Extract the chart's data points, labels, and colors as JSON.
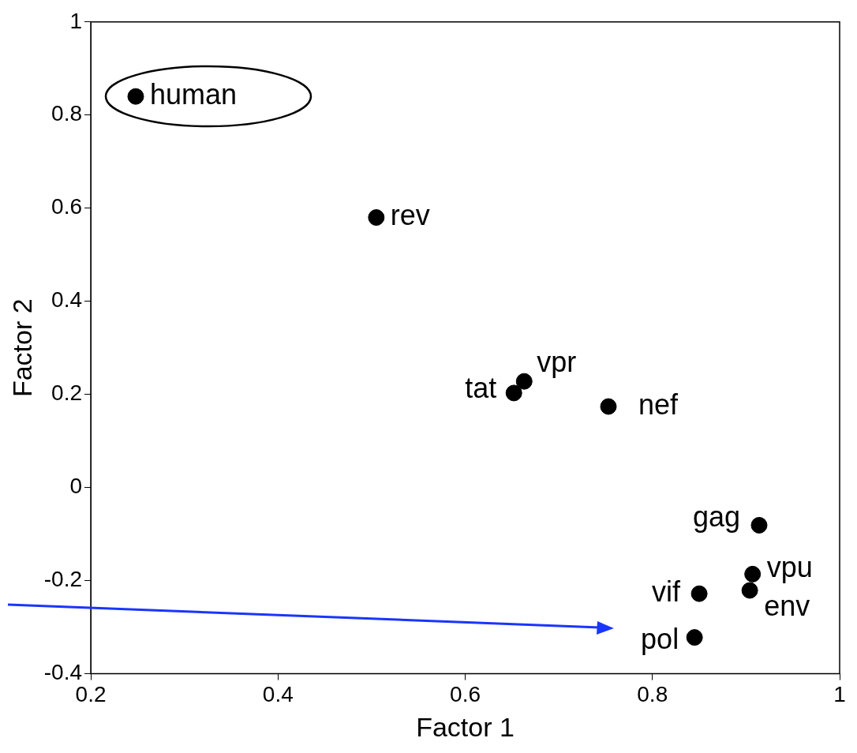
{
  "chart_data": {
    "type": "scatter",
    "xlabel": "Factor 1",
    "ylabel": "Factor 2",
    "xlim": [
      0.2,
      1
    ],
    "xticks": [
      0.2,
      0.4,
      0.6,
      0.8,
      1
    ],
    "ylim": [
      -0.4,
      1
    ],
    "yticks": [
      -0.4,
      -0.2,
      0,
      0.2,
      0.4,
      0.6,
      0.8,
      1
    ],
    "grid": false,
    "legend": false,
    "marker": "circle",
    "series": [
      {
        "color": "#000000",
        "x": [
          0.248,
          0.505,
          0.652,
          0.663,
          0.753,
          0.914,
          0.907,
          0.904,
          0.85,
          0.845
        ],
        "values": [
          0.84,
          0.58,
          0.203,
          0.228,
          0.174,
          -0.081,
          -0.186,
          -0.221,
          -0.228,
          -0.322
        ]
      }
    ],
    "annotations": [
      {
        "text": "human",
        "x": 0.248,
        "y": 0.84
      },
      {
        "text": "rev",
        "x": 0.505,
        "y": 0.58
      },
      {
        "text": "tat",
        "x": 0.652,
        "y": 0.203
      },
      {
        "text": "vpr",
        "x": 0.663,
        "y": 0.228
      },
      {
        "text": "nef",
        "x": 0.753,
        "y": 0.174
      },
      {
        "text": "gag",
        "x": 0.914,
        "y": -0.081
      },
      {
        "text": "vpu",
        "x": 0.907,
        "y": -0.186
      },
      {
        "text": "env",
        "x": 0.904,
        "y": -0.221
      },
      {
        "text": "vif",
        "x": 0.85,
        "y": -0.228
      },
      {
        "text": "pol",
        "x": 0.845,
        "y": -0.322
      }
    ]
  }
}
